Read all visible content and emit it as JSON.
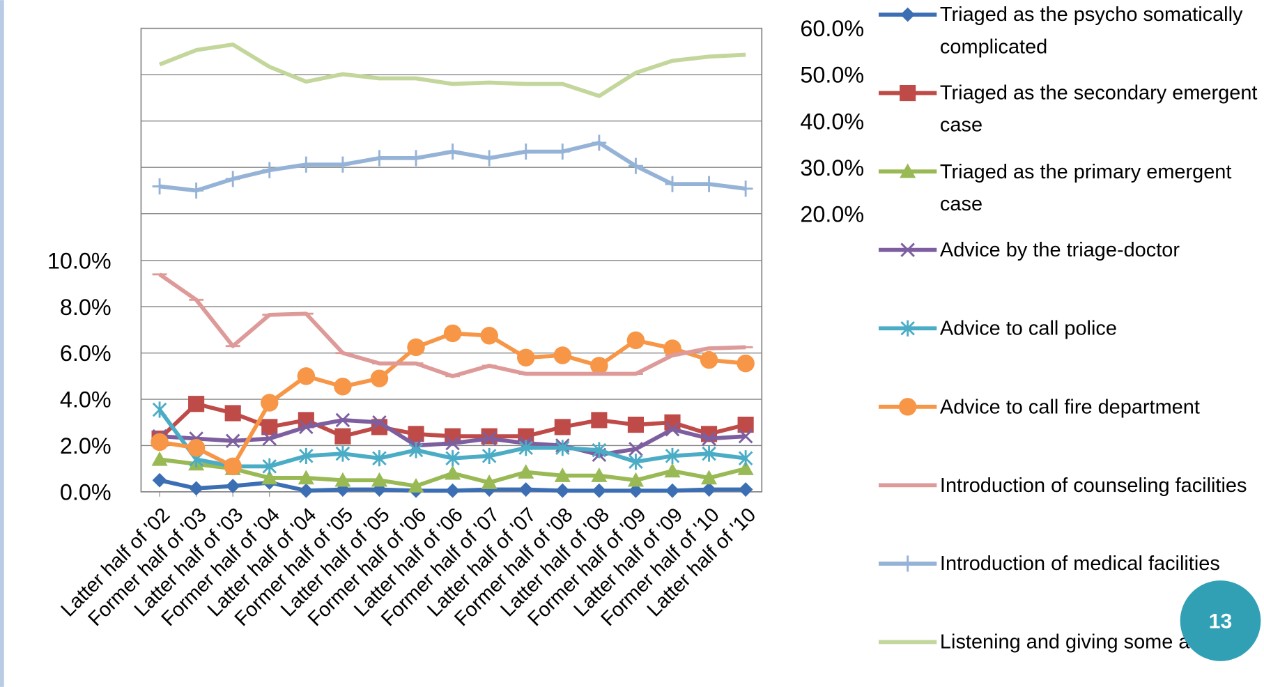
{
  "chart_data": {
    "type": "line",
    "categories": [
      "Latter half of '02",
      "Former half of '03",
      "Latter half of '03",
      "Former half of '04",
      "Latter half of '04",
      "Former half of '05",
      "Latter half of '05",
      "Former half of '06",
      "Latter half of '06",
      "Former half of '07",
      "Latter half of '07",
      "Former half of '08",
      "Latter half of '08",
      "Former half of '09",
      "Latter half of '09",
      "Former half of '10",
      "Latter half of '10"
    ],
    "ylim": [
      0,
      10
    ],
    "yticks": [
      {
        "value": 0,
        "label": "0.0%"
      },
      {
        "value": 2,
        "label": "2.0%"
      },
      {
        "value": 4,
        "label": "4.0%"
      },
      {
        "value": 6,
        "label": "6.0%"
      },
      {
        "value": 8,
        "label": "8.0%"
      },
      {
        "value": 10,
        "label": "10.0%"
      }
    ],
    "y2lim": [
      20,
      60
    ],
    "y2ticks": [
      {
        "value": 20,
        "label": "20.0%"
      },
      {
        "value": 30,
        "label": "30.0%"
      },
      {
        "value": 40,
        "label": "40.0%"
      },
      {
        "value": 50,
        "label": "50.0%"
      },
      {
        "value": 60,
        "label": "60.0%"
      }
    ],
    "grid": true,
    "legend": "right",
    "series": [
      {
        "name": "Triaged as the psycho somatically complicated",
        "color": "#3c6eb4",
        "marker": "diamond",
        "values": [
          0.5,
          0.15,
          0.25,
          0.4,
          0.05,
          0.1,
          0.1,
          0.05,
          0.05,
          0.1,
          0.1,
          0.05,
          0.05,
          0.05,
          0.05,
          0.1,
          0.1
        ]
      },
      {
        "name": "Triaged as the secondary emergent case",
        "color": "#be4b48",
        "marker": "square",
        "values": [
          2.3,
          3.8,
          3.4,
          2.8,
          3.1,
          2.4,
          2.8,
          2.5,
          2.4,
          2.4,
          2.4,
          2.8,
          3.1,
          2.9,
          3.0,
          2.5,
          2.9
        ]
      },
      {
        "name": "Triaged as the primary emergent case",
        "color": "#98b954",
        "marker": "triangle",
        "values": [
          1.4,
          1.2,
          1.0,
          0.6,
          0.6,
          0.5,
          0.5,
          0.25,
          0.8,
          0.4,
          0.85,
          0.7,
          0.7,
          0.5,
          0.9,
          0.6,
          1.0
        ]
      },
      {
        "name": "Advice by the triage-doctor",
        "color": "#7d5fa0",
        "marker": "x",
        "values": [
          2.4,
          2.3,
          2.2,
          2.3,
          2.8,
          3.1,
          3.0,
          2.0,
          2.1,
          2.3,
          2.1,
          2.0,
          1.6,
          1.85,
          2.7,
          2.3,
          2.4
        ]
      },
      {
        "name": "Advice to call police",
        "color": "#4bacc6",
        "marker": "star",
        "values": [
          3.55,
          1.4,
          1.1,
          1.1,
          1.55,
          1.65,
          1.45,
          1.8,
          1.45,
          1.55,
          1.9,
          1.9,
          1.8,
          1.3,
          1.55,
          1.65,
          1.45
        ]
      },
      {
        "name": "Advice to call fire department",
        "color": "#f79646",
        "marker": "circle",
        "values": [
          2.15,
          1.9,
          1.1,
          3.85,
          5.0,
          4.55,
          4.9,
          6.25,
          6.85,
          6.75,
          5.8,
          5.9,
          5.45,
          6.55,
          6.2,
          5.7,
          5.55
        ]
      },
      {
        "name": "Introduction of counseling facilities",
        "color": "#dd9a98",
        "marker": "dash",
        "values": [
          9.4,
          8.3,
          6.3,
          7.65,
          7.7,
          6.0,
          5.55,
          5.55,
          5.0,
          5.45,
          5.1,
          5.1,
          5.1,
          5.1,
          5.9,
          6.2,
          6.25
        ]
      },
      {
        "name": "Introduction of medical facilities",
        "color": "#95b3d7",
        "marker": "plus",
        "axis": "y2",
        "values": [
          25.9,
          25.0,
          27.5,
          29.4,
          30.6,
          30.6,
          32.0,
          32.0,
          33.4,
          32.0,
          33.4,
          33.4,
          35.3,
          30.3,
          26.4,
          26.4,
          25.4
        ]
      },
      {
        "name": "Listening and giving some advice",
        "color": "#c3d69b",
        "marker": "none",
        "axis": "y2",
        "values": [
          52.2,
          55.3,
          56.5,
          51.7,
          48.5,
          50.1,
          49.2,
          49.2,
          48.0,
          48.3,
          48.0,
          48.0,
          45.4,
          50.4,
          53.0,
          53.9,
          54.3
        ]
      }
    ]
  },
  "page_number": "13"
}
